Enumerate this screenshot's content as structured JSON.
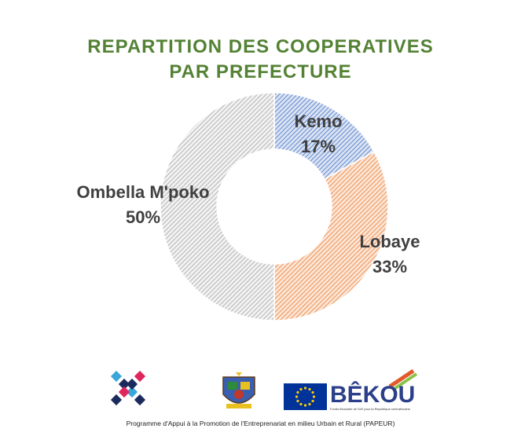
{
  "chart_data": {
    "type": "pie",
    "title": [
      "REPARTITION DES COOPERATIVES",
      "PAR PREFECTURE"
    ],
    "donut": true,
    "categories": [
      "Kemo",
      "Lobaye",
      "Ombella M'poko"
    ],
    "values": [
      17,
      33,
      50
    ],
    "value_labels": [
      "17%",
      "33%",
      "50%"
    ],
    "colors": [
      "#4472C4",
      "#ED7D31",
      "#A5A5A5"
    ],
    "fill_pattern": "diagonal-hatch",
    "legend": "none"
  },
  "logos": {
    "partner_logo": "pixel-cross-logo",
    "emblem": "coat-of-arms-emblem",
    "eu_flag": "eu-flag",
    "bekou_name": "BÊKOU",
    "bekou_subtitle": "Fonds fiduciaire de l'UE pour la République centrafricaine"
  },
  "footer": {
    "text": "Programme d'Appui à la Promotion de l'Entreprenariat en milieu Urbain et Rural (PAPEUR)"
  }
}
